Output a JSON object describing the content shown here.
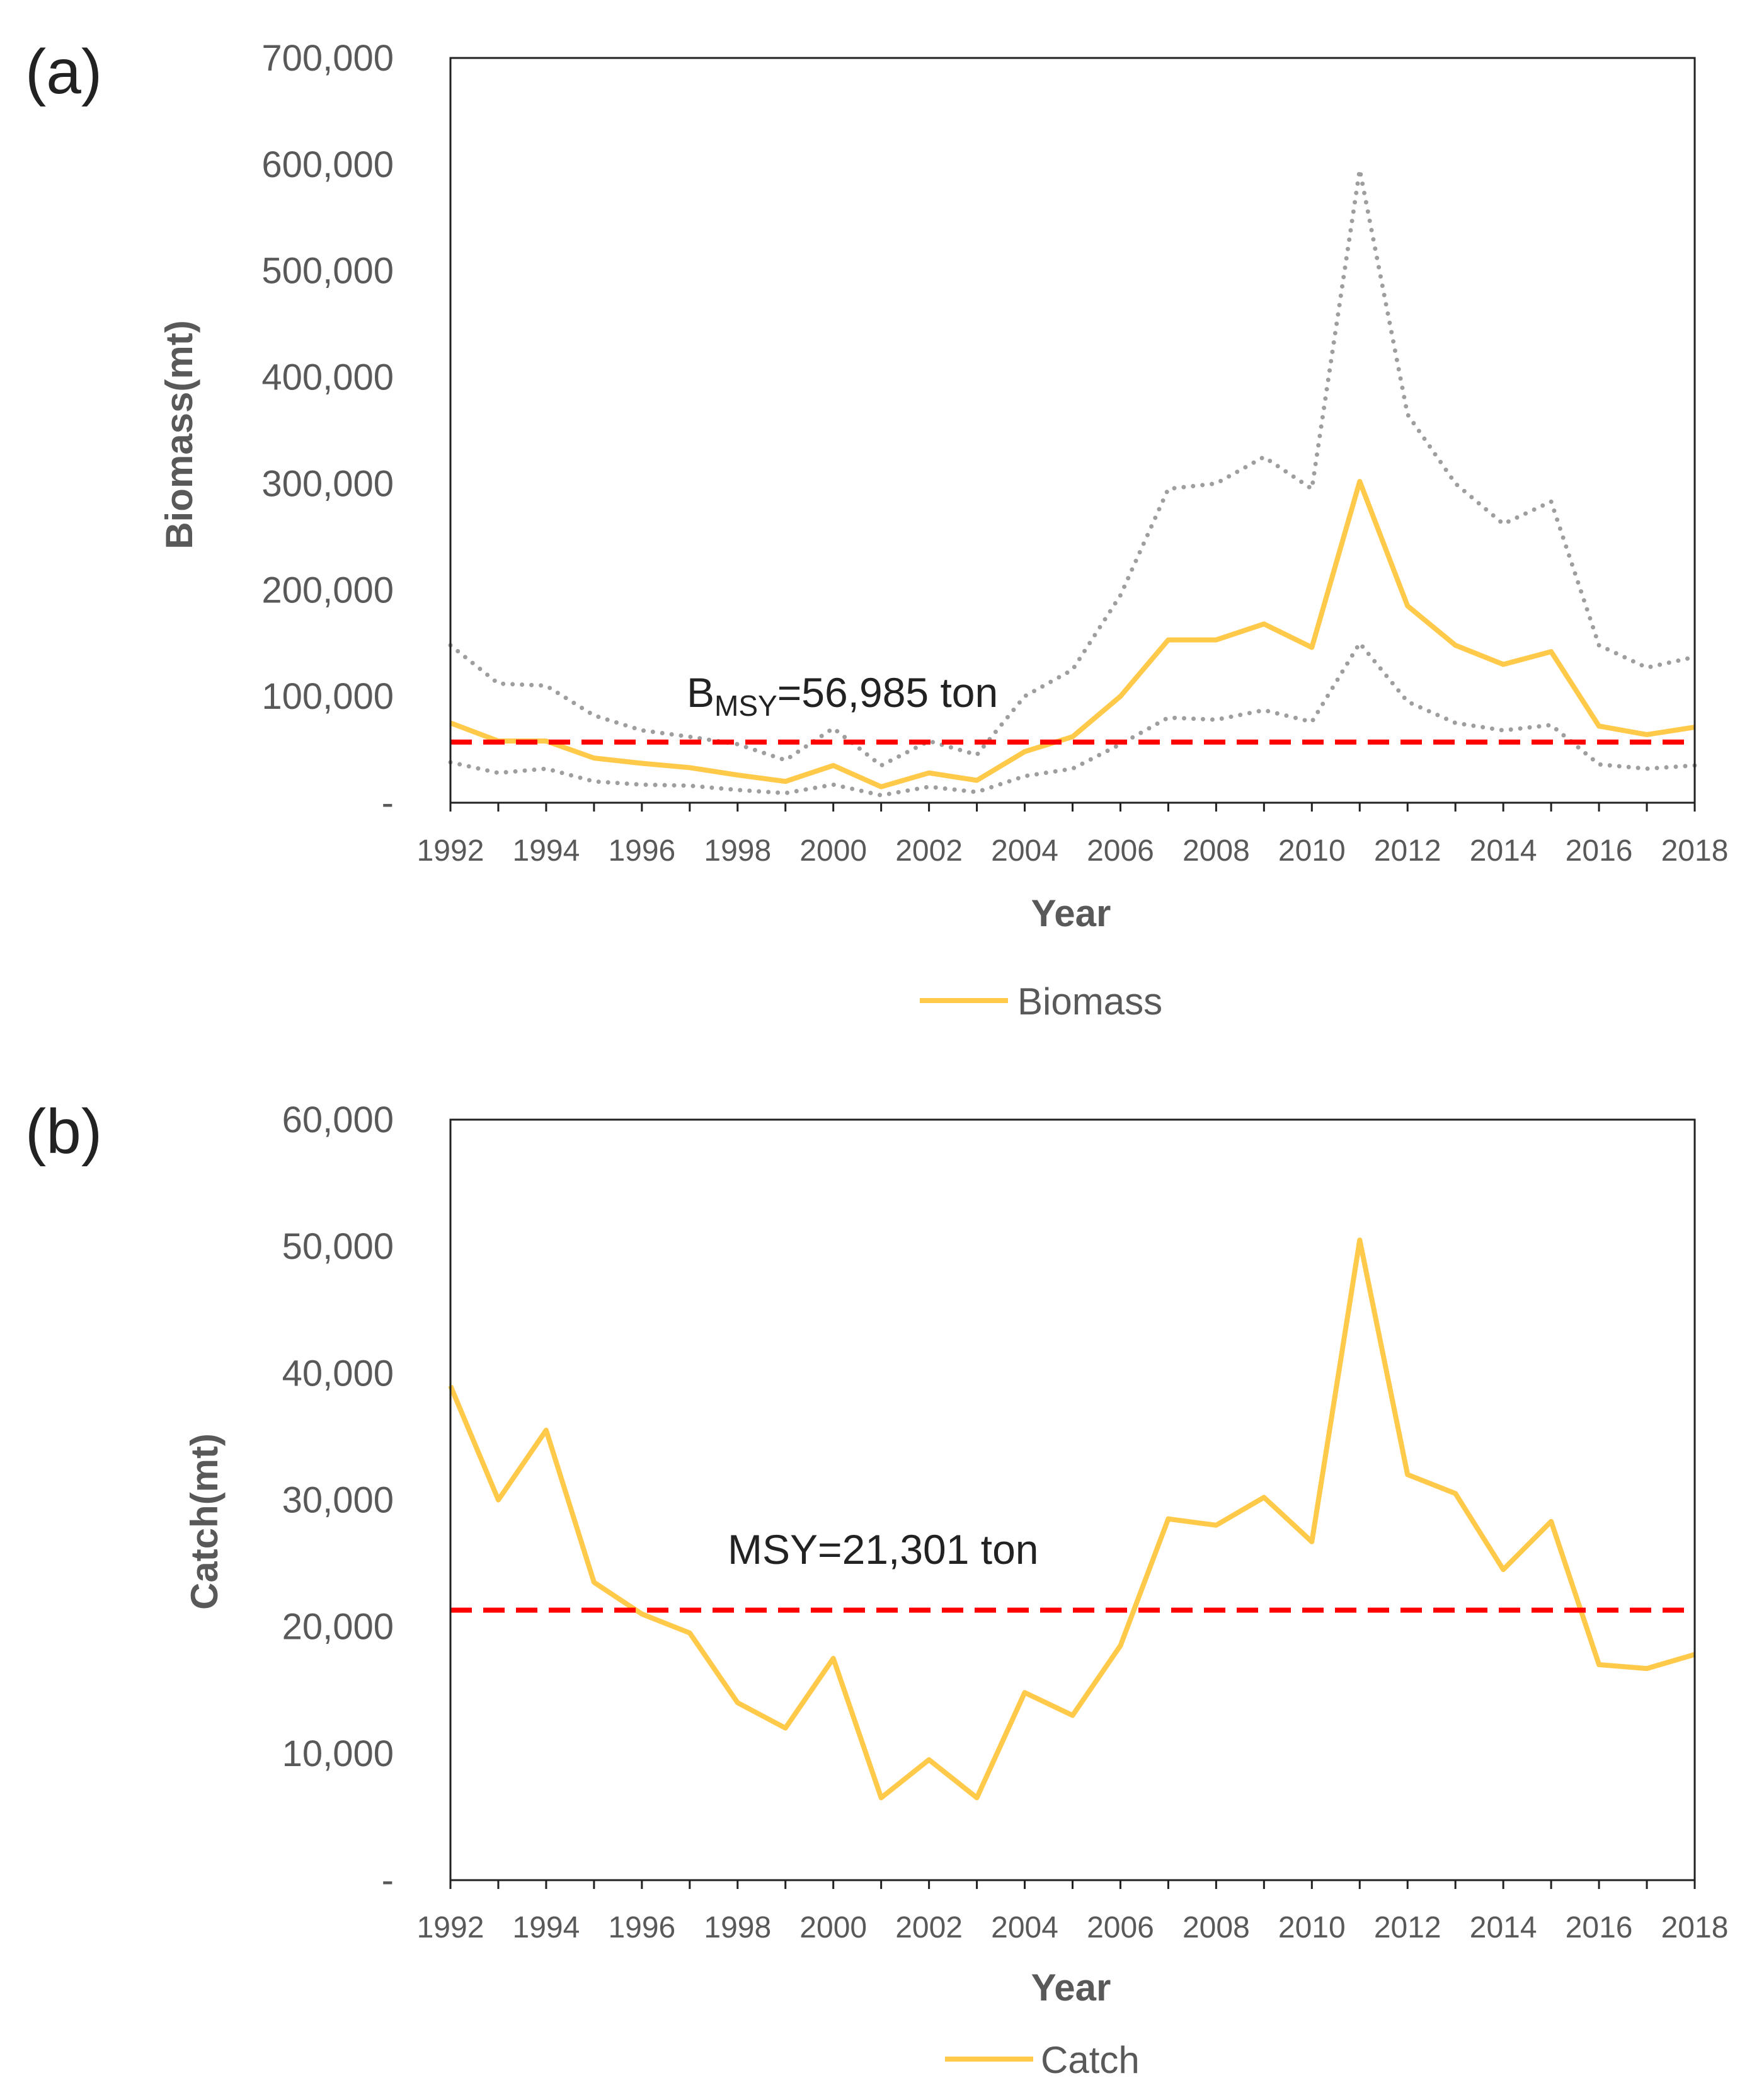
{
  "chart_data": [
    {
      "type": "line",
      "panel_label": "(a)",
      "xlabel": "Year",
      "ylabel": "Biomass(mt)",
      "xlim": [
        1992,
        2018
      ],
      "ylim": [
        0,
        700000
      ],
      "x_ticks": [
        "1992",
        "1994",
        "1996",
        "1998",
        "2000",
        "2002",
        "2004",
        "2006",
        "2008",
        "2010",
        "2012",
        "2014",
        "2016",
        "2018"
      ],
      "y_ticks": [
        "-",
        "100,000",
        "200,000",
        "300,000",
        "400,000",
        "500,000",
        "600,000",
        "700,000"
      ],
      "x": [
        1992,
        1993,
        1994,
        1995,
        1996,
        1997,
        1998,
        1999,
        2000,
        2001,
        2002,
        2003,
        2004,
        2005,
        2006,
        2007,
        2008,
        2009,
        2010,
        2011,
        2012,
        2013,
        2014,
        2015,
        2016,
        2017,
        2018
      ],
      "series": [
        {
          "name": "Biomass",
          "color": "#FFC94A",
          "style": "solid",
          "values": [
            75000,
            58000,
            58000,
            42000,
            37000,
            33000,
            26000,
            20000,
            35000,
            15000,
            28000,
            21000,
            48000,
            62000,
            100000,
            153000,
            153000,
            168000,
            146000,
            302000,
            185000,
            148000,
            130000,
            142000,
            72000,
            64000,
            71000
          ]
        },
        {
          "name": "upper",
          "color": "#9E9E9E",
          "style": "dotted",
          "values": [
            148000,
            112000,
            110000,
            82000,
            68000,
            62000,
            55000,
            40000,
            70000,
            35000,
            58000,
            45000,
            100000,
            125000,
            195000,
            295000,
            300000,
            325000,
            295000,
            595000,
            365000,
            300000,
            262000,
            283000,
            148000,
            127000,
            137000
          ]
        },
        {
          "name": "lower",
          "color": "#9E9E9E",
          "style": "dotted",
          "values": [
            38000,
            28000,
            32000,
            20000,
            17000,
            16000,
            12000,
            9000,
            17000,
            7000,
            15000,
            10000,
            25000,
            32000,
            55000,
            80000,
            78000,
            87000,
            76000,
            150000,
            95000,
            75000,
            68000,
            73000,
            36000,
            32000,
            35000
          ]
        }
      ],
      "reference": {
        "value": 56985,
        "label_main": "B",
        "label_sub": "MSY",
        "label_rest": "=56,985 ton",
        "color": "#FF0000"
      },
      "legend": {
        "label": "Biomass",
        "position": "bottom-center"
      }
    },
    {
      "type": "line",
      "panel_label": "(b)",
      "xlabel": "Year",
      "ylabel": "Catch(mt)",
      "xlim": [
        1992,
        2018
      ],
      "ylim": [
        0,
        60000
      ],
      "x_ticks": [
        "1992",
        "1994",
        "1996",
        "1998",
        "2000",
        "2002",
        "2004",
        "2006",
        "2008",
        "2010",
        "2012",
        "2014",
        "2016",
        "2018"
      ],
      "y_ticks": [
        "-",
        "10,000",
        "20,000",
        "30,000",
        "40,000",
        "50,000",
        "60,000"
      ],
      "x": [
        1992,
        1993,
        1994,
        1995,
        1996,
        1997,
        1998,
        1999,
        2000,
        2001,
        2002,
        2003,
        2004,
        2005,
        2006,
        2007,
        2008,
        2009,
        2010,
        2011,
        2012,
        2013,
        2014,
        2015,
        2016,
        2017,
        2018
      ],
      "series": [
        {
          "name": "Catch",
          "color": "#FFC94A",
          "style": "solid",
          "values": [
            39000,
            30000,
            35500,
            23500,
            21000,
            19500,
            14000,
            12000,
            17500,
            6500,
            9500,
            6500,
            14800,
            13000,
            18500,
            28500,
            28000,
            30200,
            26700,
            50500,
            32000,
            30500,
            24500,
            28300,
            17000,
            16700,
            17800
          ]
        }
      ],
      "reference": {
        "value": 21301,
        "label_main": "MSY=21,301 ton",
        "label_sub": "",
        "label_rest": "",
        "color": "#FF0000"
      },
      "legend": {
        "label": "Catch",
        "position": "bottom-center"
      }
    }
  ]
}
